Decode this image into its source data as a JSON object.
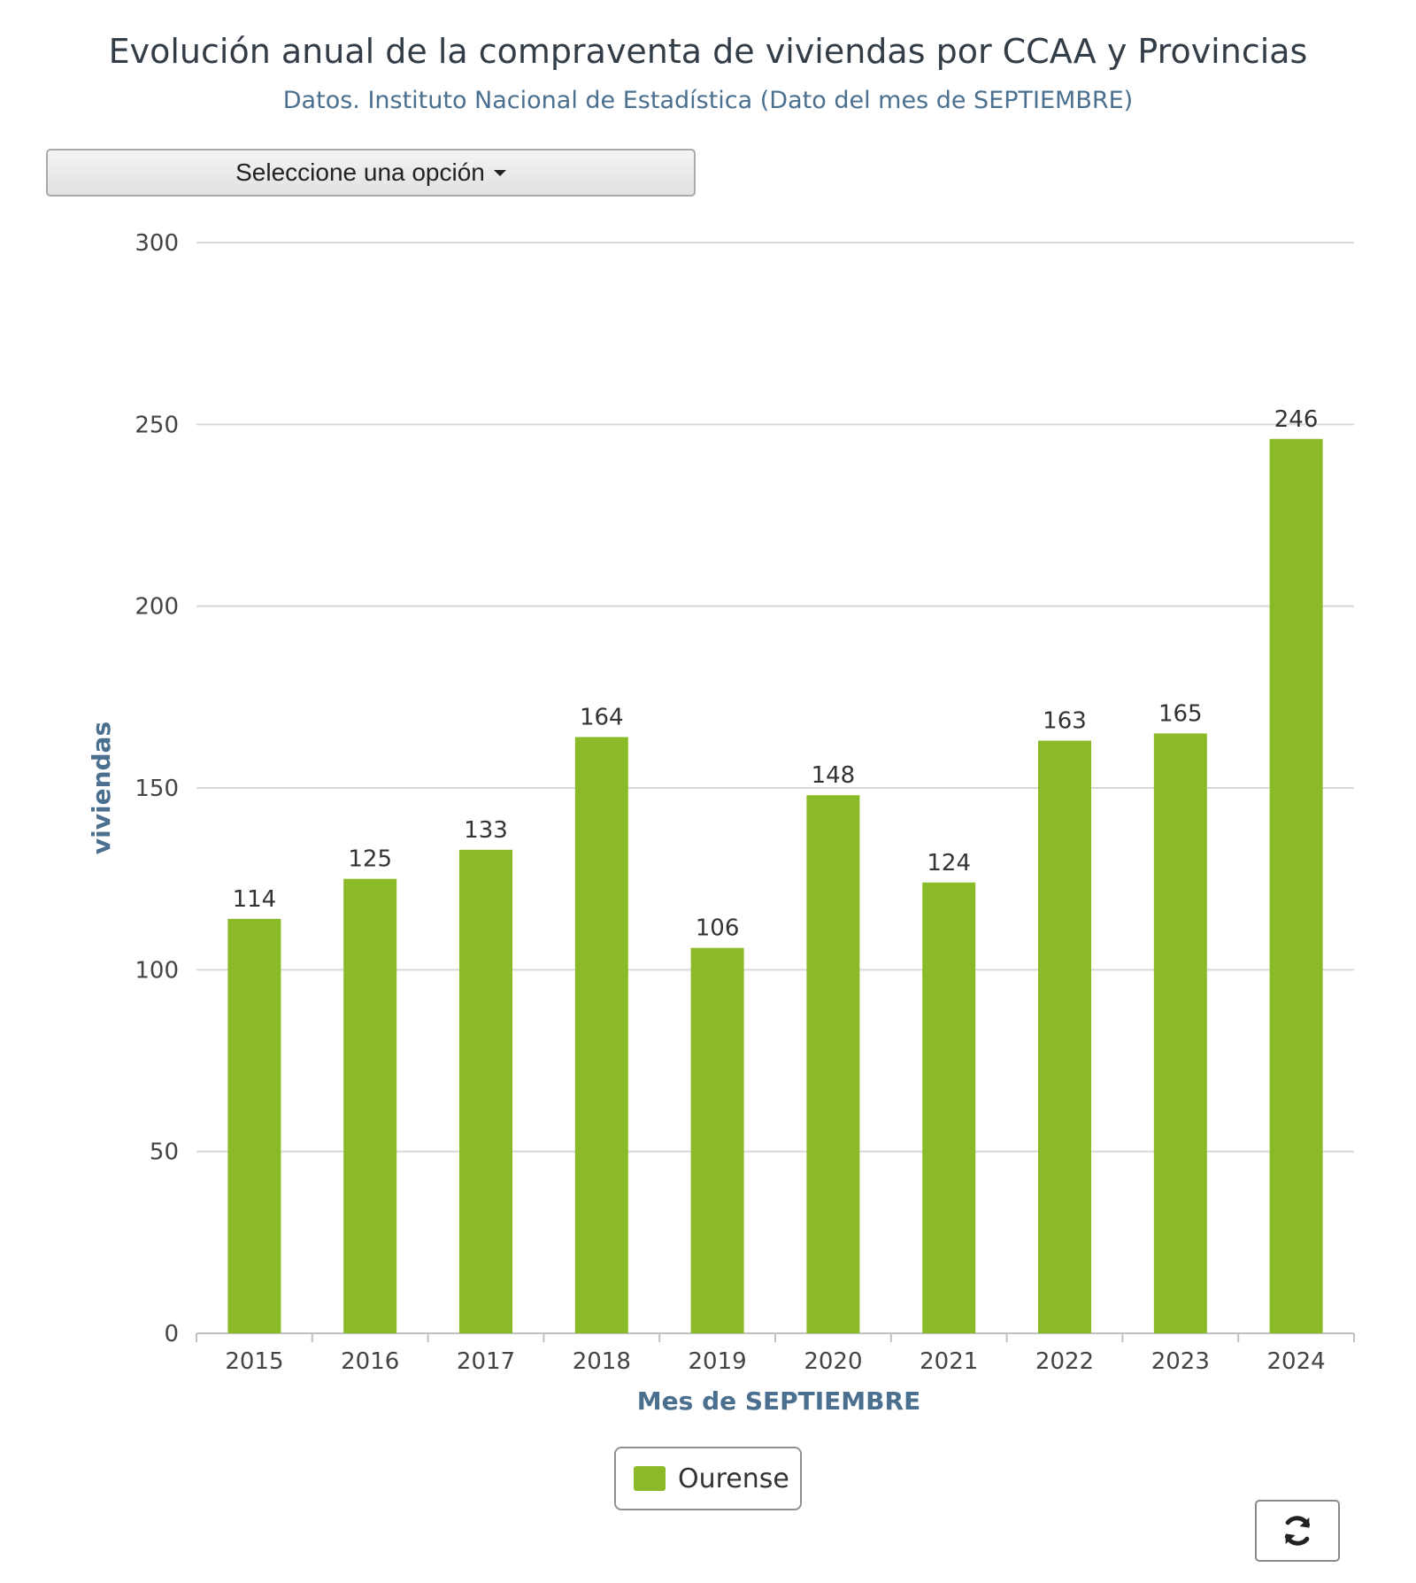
{
  "header": {
    "title": "Evolución anual de la compraventa de viviendas por CCAA y Provincias",
    "subtitle": "Datos. Instituto Nacional de Estadística (Dato del mes de SEPTIEMBRE)"
  },
  "dropdown": {
    "label": "Seleccione una opción"
  },
  "legend": {
    "label": "Ourense"
  },
  "controls": {
    "refresh_icon": "refresh-icon"
  },
  "colors": {
    "bar": "#8aba27",
    "grid": "#d8d8d8",
    "axis_title": "#4a6f8f",
    "tick": "#444444"
  },
  "chart_data": {
    "type": "bar",
    "xlabel": "Mes de SEPTIEMBRE",
    "ylabel": "viviendas",
    "ylim": [
      0,
      300
    ],
    "yticks": [
      0,
      50,
      100,
      150,
      200,
      250,
      300
    ],
    "categories": [
      "2015",
      "2016",
      "2017",
      "2018",
      "2019",
      "2020",
      "2021",
      "2022",
      "2023",
      "2024"
    ],
    "series": [
      {
        "name": "Ourense",
        "values": [
          114,
          125,
          133,
          164,
          106,
          148,
          124,
          163,
          165,
          246
        ]
      }
    ],
    "data_labels": true,
    "grid": true,
    "legend_position": "bottom-center"
  }
}
